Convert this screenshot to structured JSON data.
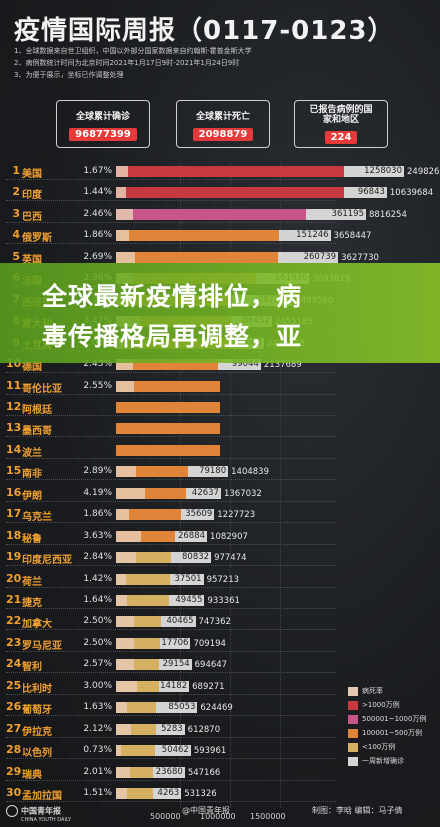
{
  "header": {
    "title": "疫情国际周报（0117-0123）",
    "source_lines": [
      "1、全球数据来自世卫组织，中国以外部分国家数据来自约翰斯·霍普金斯大学",
      "2、病例数统计时间为北京时间2021年1月17日9时-2021年1月24日9时",
      "3、为便于展示，坐标已作调整处理"
    ]
  },
  "summary": {
    "confirmed_label": "全球累计确诊",
    "confirmed_value": "96877399",
    "deaths_label": "全球累计死亡",
    "deaths_value": "2098879",
    "countries_label": "已报告病例的国家和地区",
    "countries_value": "224"
  },
  "banner": {
    "line1": "全球最新疫情排位，病",
    "line2": "毒传播格局再调整，亚"
  },
  "colors": {
    "over10m": "#c8383f",
    "m5to10": "#c8558a",
    "m1to5": "#e0843a",
    "under1m": "#d4b060",
    "daily": "#d4d4d4",
    "rate": "#e6c9b2",
    "rank_text": "#f0a030"
  },
  "chart_data": {
    "type": "bar",
    "x_ticks": [
      "500000",
      "1000000",
      "1500000"
    ],
    "rows": [
      {
        "rank": "1",
        "name": "美国",
        "rate": "1.67%",
        "daily": "1258030",
        "total": "24982615",
        "tier": "over10m"
      },
      {
        "rank": "2",
        "name": "印度",
        "rate": "1.44%",
        "daily": "96843",
        "total": "10639684",
        "tier": "over10m"
      },
      {
        "rank": "3",
        "name": "巴西",
        "rate": "2.46%",
        "daily": "361195",
        "total": "8816254",
        "tier": "m5to10"
      },
      {
        "rank": "4",
        "name": "俄罗斯",
        "rate": "1.86%",
        "daily": "151246",
        "total": "3658447",
        "tier": "m1to5"
      },
      {
        "rank": "5",
        "name": "英国",
        "rate": "2.69%",
        "daily": "260739",
        "total": "3627730",
        "tier": "m1to5"
      },
      {
        "rank": "6",
        "name": "法国",
        "rate": "2.36%",
        "daily": "161936",
        "total": "3093619",
        "tier": "m1to5"
      },
      {
        "rank": "7",
        "name": "西班牙",
        "rate": "2.22%",
        "daily": "247396",
        "total": "2499560",
        "tier": "m1to5"
      },
      {
        "rank": "8",
        "name": "意大利",
        "rate": "3.47%",
        "daily": "86452",
        "total": "2455185",
        "tier": "m1to5"
      },
      {
        "rank": "9",
        "name": "土耳其",
        "rate": "1.03%",
        "daily": "43663",
        "total": "2424328",
        "tier": "m1to5"
      },
      {
        "rank": "10",
        "name": "德国",
        "rate": "2.43%",
        "daily": "99044",
        "total": "2137689",
        "tier": "m1to5"
      },
      {
        "rank": "11",
        "name": "哥伦比亚",
        "rate": "2.55%",
        "daily": "",
        "total": "",
        "tier": "m1to5"
      },
      {
        "rank": "12",
        "name": "阿根廷",
        "rate": "",
        "daily": "",
        "total": "",
        "tier": "m1to5"
      },
      {
        "rank": "13",
        "name": "墨西哥",
        "rate": "",
        "daily": "",
        "total": "",
        "tier": "m1to5"
      },
      {
        "rank": "14",
        "name": "波兰",
        "rate": "",
        "daily": "",
        "total": "",
        "tier": "m1to5"
      },
      {
        "rank": "15",
        "name": "南非",
        "rate": "2.89%",
        "daily": "79180",
        "total": "1404839",
        "tier": "m1to5"
      },
      {
        "rank": "16",
        "name": "伊朗",
        "rate": "4.19%",
        "daily": "42637",
        "total": "1367032",
        "tier": "m1to5"
      },
      {
        "rank": "17",
        "name": "乌克兰",
        "rate": "1.86%",
        "daily": "35609",
        "total": "1227723",
        "tier": "m1to5"
      },
      {
        "rank": "18",
        "name": "秘鲁",
        "rate": "3.63%",
        "daily": "26884",
        "total": "1082907",
        "tier": "m1to5"
      },
      {
        "rank": "19",
        "name": "印度尼西亚",
        "rate": "2.84%",
        "daily": "80832",
        "total": "977474",
        "tier": "under1m"
      },
      {
        "rank": "20",
        "name": "荷兰",
        "rate": "1.42%",
        "daily": "37501",
        "total": "957213",
        "tier": "under1m"
      },
      {
        "rank": "21",
        "name": "捷克",
        "rate": "1.64%",
        "daily": "49455",
        "total": "933361",
        "tier": "under1m"
      },
      {
        "rank": "22",
        "name": "加拿大",
        "rate": "2.50%",
        "daily": "40465",
        "total": "747362",
        "tier": "under1m"
      },
      {
        "rank": "23",
        "name": "罗马尼亚",
        "rate": "2.50%",
        "daily": "17706",
        "total": "709194",
        "tier": "under1m"
      },
      {
        "rank": "24",
        "name": "智利",
        "rate": "2.57%",
        "daily": "29154",
        "total": "694647",
        "tier": "under1m"
      },
      {
        "rank": "25",
        "name": "比利时",
        "rate": "3.00%",
        "daily": "14182",
        "total": "689271",
        "tier": "under1m"
      },
      {
        "rank": "26",
        "name": "葡萄牙",
        "rate": "1.63%",
        "daily": "85053",
        "total": "624469",
        "tier": "under1m"
      },
      {
        "rank": "27",
        "name": "伊拉克",
        "rate": "2.12%",
        "daily": "5283",
        "total": "612870",
        "tier": "under1m"
      },
      {
        "rank": "28",
        "name": "以色列",
        "rate": "0.73%",
        "daily": "50462",
        "total": "593961",
        "tier": "under1m"
      },
      {
        "rank": "29",
        "name": "瑞典",
        "rate": "2.01%",
        "daily": "23680",
        "total": "547166",
        "tier": "under1m"
      },
      {
        "rank": "30",
        "name": "孟加拉国",
        "rate": "1.51%",
        "daily": "4263",
        "total": "531326",
        "tier": "under1m"
      }
    ],
    "legend": [
      {
        "label": "病死率",
        "color_key": "rate"
      },
      {
        "label": ">1000万例",
        "color_key": "over10m"
      },
      {
        "label": "500001~1000万例",
        "color_key": "m5to10"
      },
      {
        "label": "100001~500万例",
        "color_key": "m1to5"
      },
      {
        "label": "<100万例",
        "color_key": "under1m"
      },
      {
        "label": "一周新增确诊",
        "color_key": "daily"
      }
    ]
  },
  "footer": {
    "brand": "中国青年报",
    "brand_sub": "CHINA YOUTH DAILY",
    "weibo": "@中国青年报",
    "credits": "制图：李晗  编辑：马子倩"
  }
}
